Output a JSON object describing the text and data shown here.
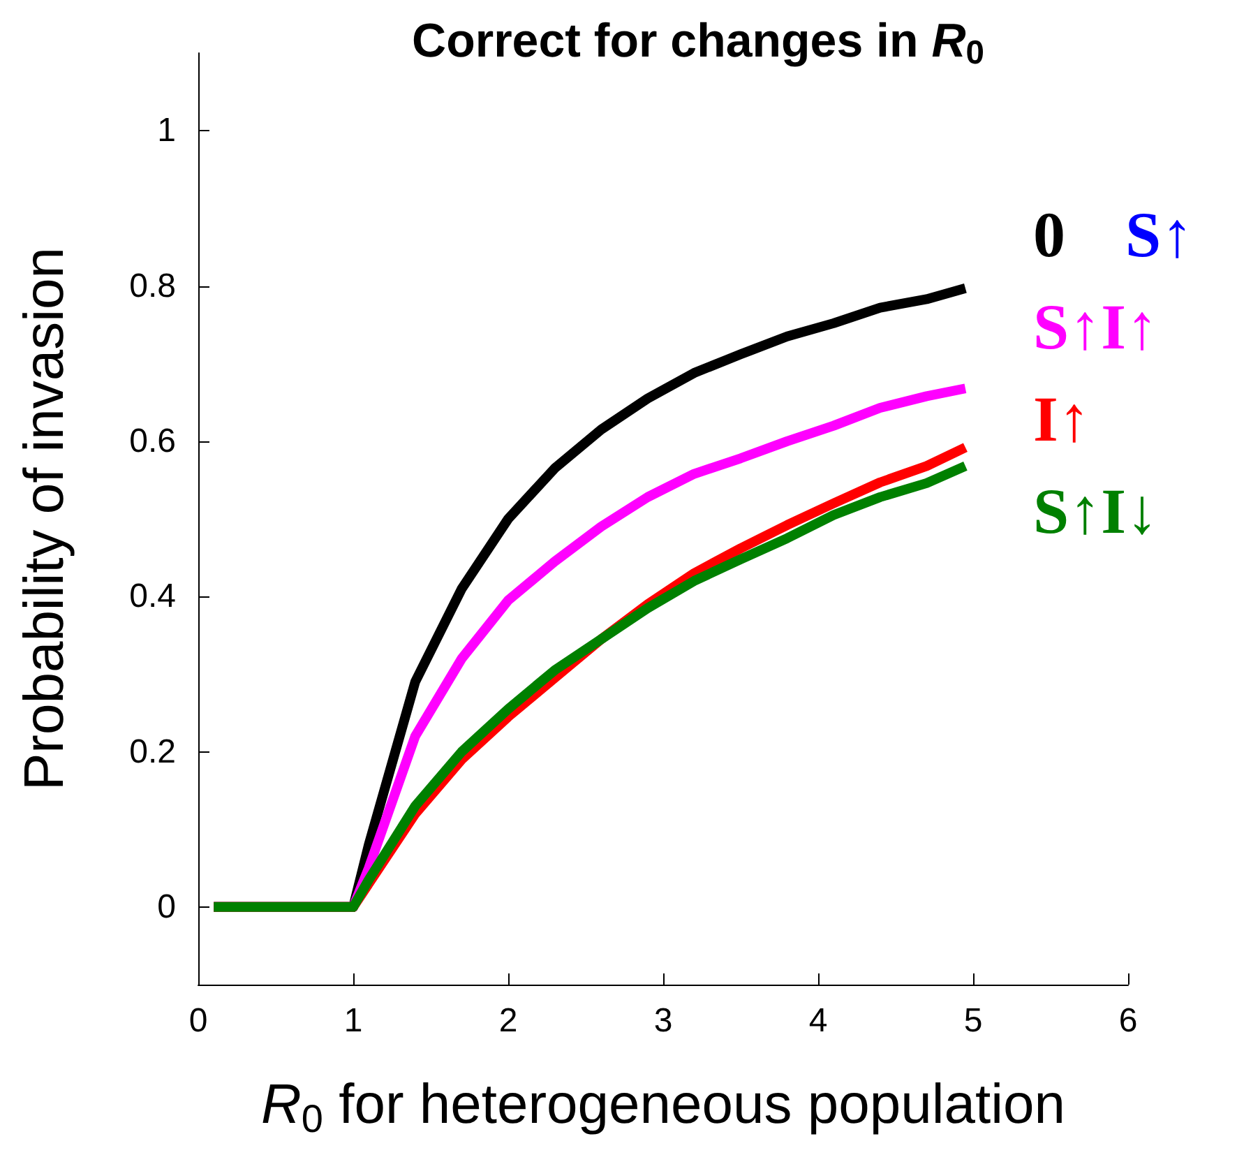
{
  "chart_data": {
    "type": "line",
    "title": "Correct for changes in R$_{0}$",
    "xlabel": "R$_{0}$ for heterogeneous population",
    "ylabel": "Probability of invasion",
    "x": [
      0.1,
      1.0,
      1.1,
      1.4,
      1.7,
      2.0,
      2.3,
      2.6,
      2.9,
      3.2,
      3.5,
      3.8,
      4.1,
      4.4,
      4.7,
      4.95
    ],
    "series": [
      {
        "name": "0",
        "color": "#000000",
        "values": [
          0,
          0,
          0.08,
          0.29,
          0.41,
          0.5,
          0.565,
          0.615,
          0.655,
          0.688,
          0.712,
          0.735,
          0.752,
          0.772,
          0.783,
          0.797
        ]
      },
      {
        "name": "S↑",
        "color": "#0000ff",
        "values": [
          null,
          null,
          null,
          null,
          null,
          null,
          null,
          null,
          null,
          null,
          null,
          null,
          null,
          null,
          null,
          null
        ]
      },
      {
        "name": "S↑I↑",
        "color": "#ff00ff",
        "values": [
          0,
          0,
          0.05,
          0.22,
          0.32,
          0.395,
          0.445,
          0.49,
          0.528,
          0.558,
          0.578,
          0.6,
          0.62,
          0.643,
          0.658,
          0.668
        ]
      },
      {
        "name": "I↑",
        "color": "#ff0000",
        "values": [
          0,
          0,
          0.03,
          0.12,
          0.19,
          0.245,
          0.295,
          0.345,
          0.39,
          0.43,
          0.462,
          0.492,
          0.52,
          0.547,
          0.568,
          0.592
        ]
      },
      {
        "name": "S↑I↓",
        "color": "#008000",
        "values": [
          0,
          0,
          0.035,
          0.13,
          0.2,
          0.255,
          0.305,
          0.345,
          0.385,
          0.42,
          0.448,
          0.475,
          0.505,
          0.528,
          0.546,
          0.568
        ]
      }
    ],
    "xlim": [
      0,
      6
    ],
    "xticks": [
      0,
      1,
      2,
      3,
      4,
      5,
      6
    ],
    "ylim": [
      -0.1,
      1.1
    ],
    "yticks": [
      0,
      0.2,
      0.4,
      0.6,
      0.8,
      1
    ],
    "grid": false,
    "legend": "right",
    "marker": "none",
    "line_style": "solid"
  }
}
